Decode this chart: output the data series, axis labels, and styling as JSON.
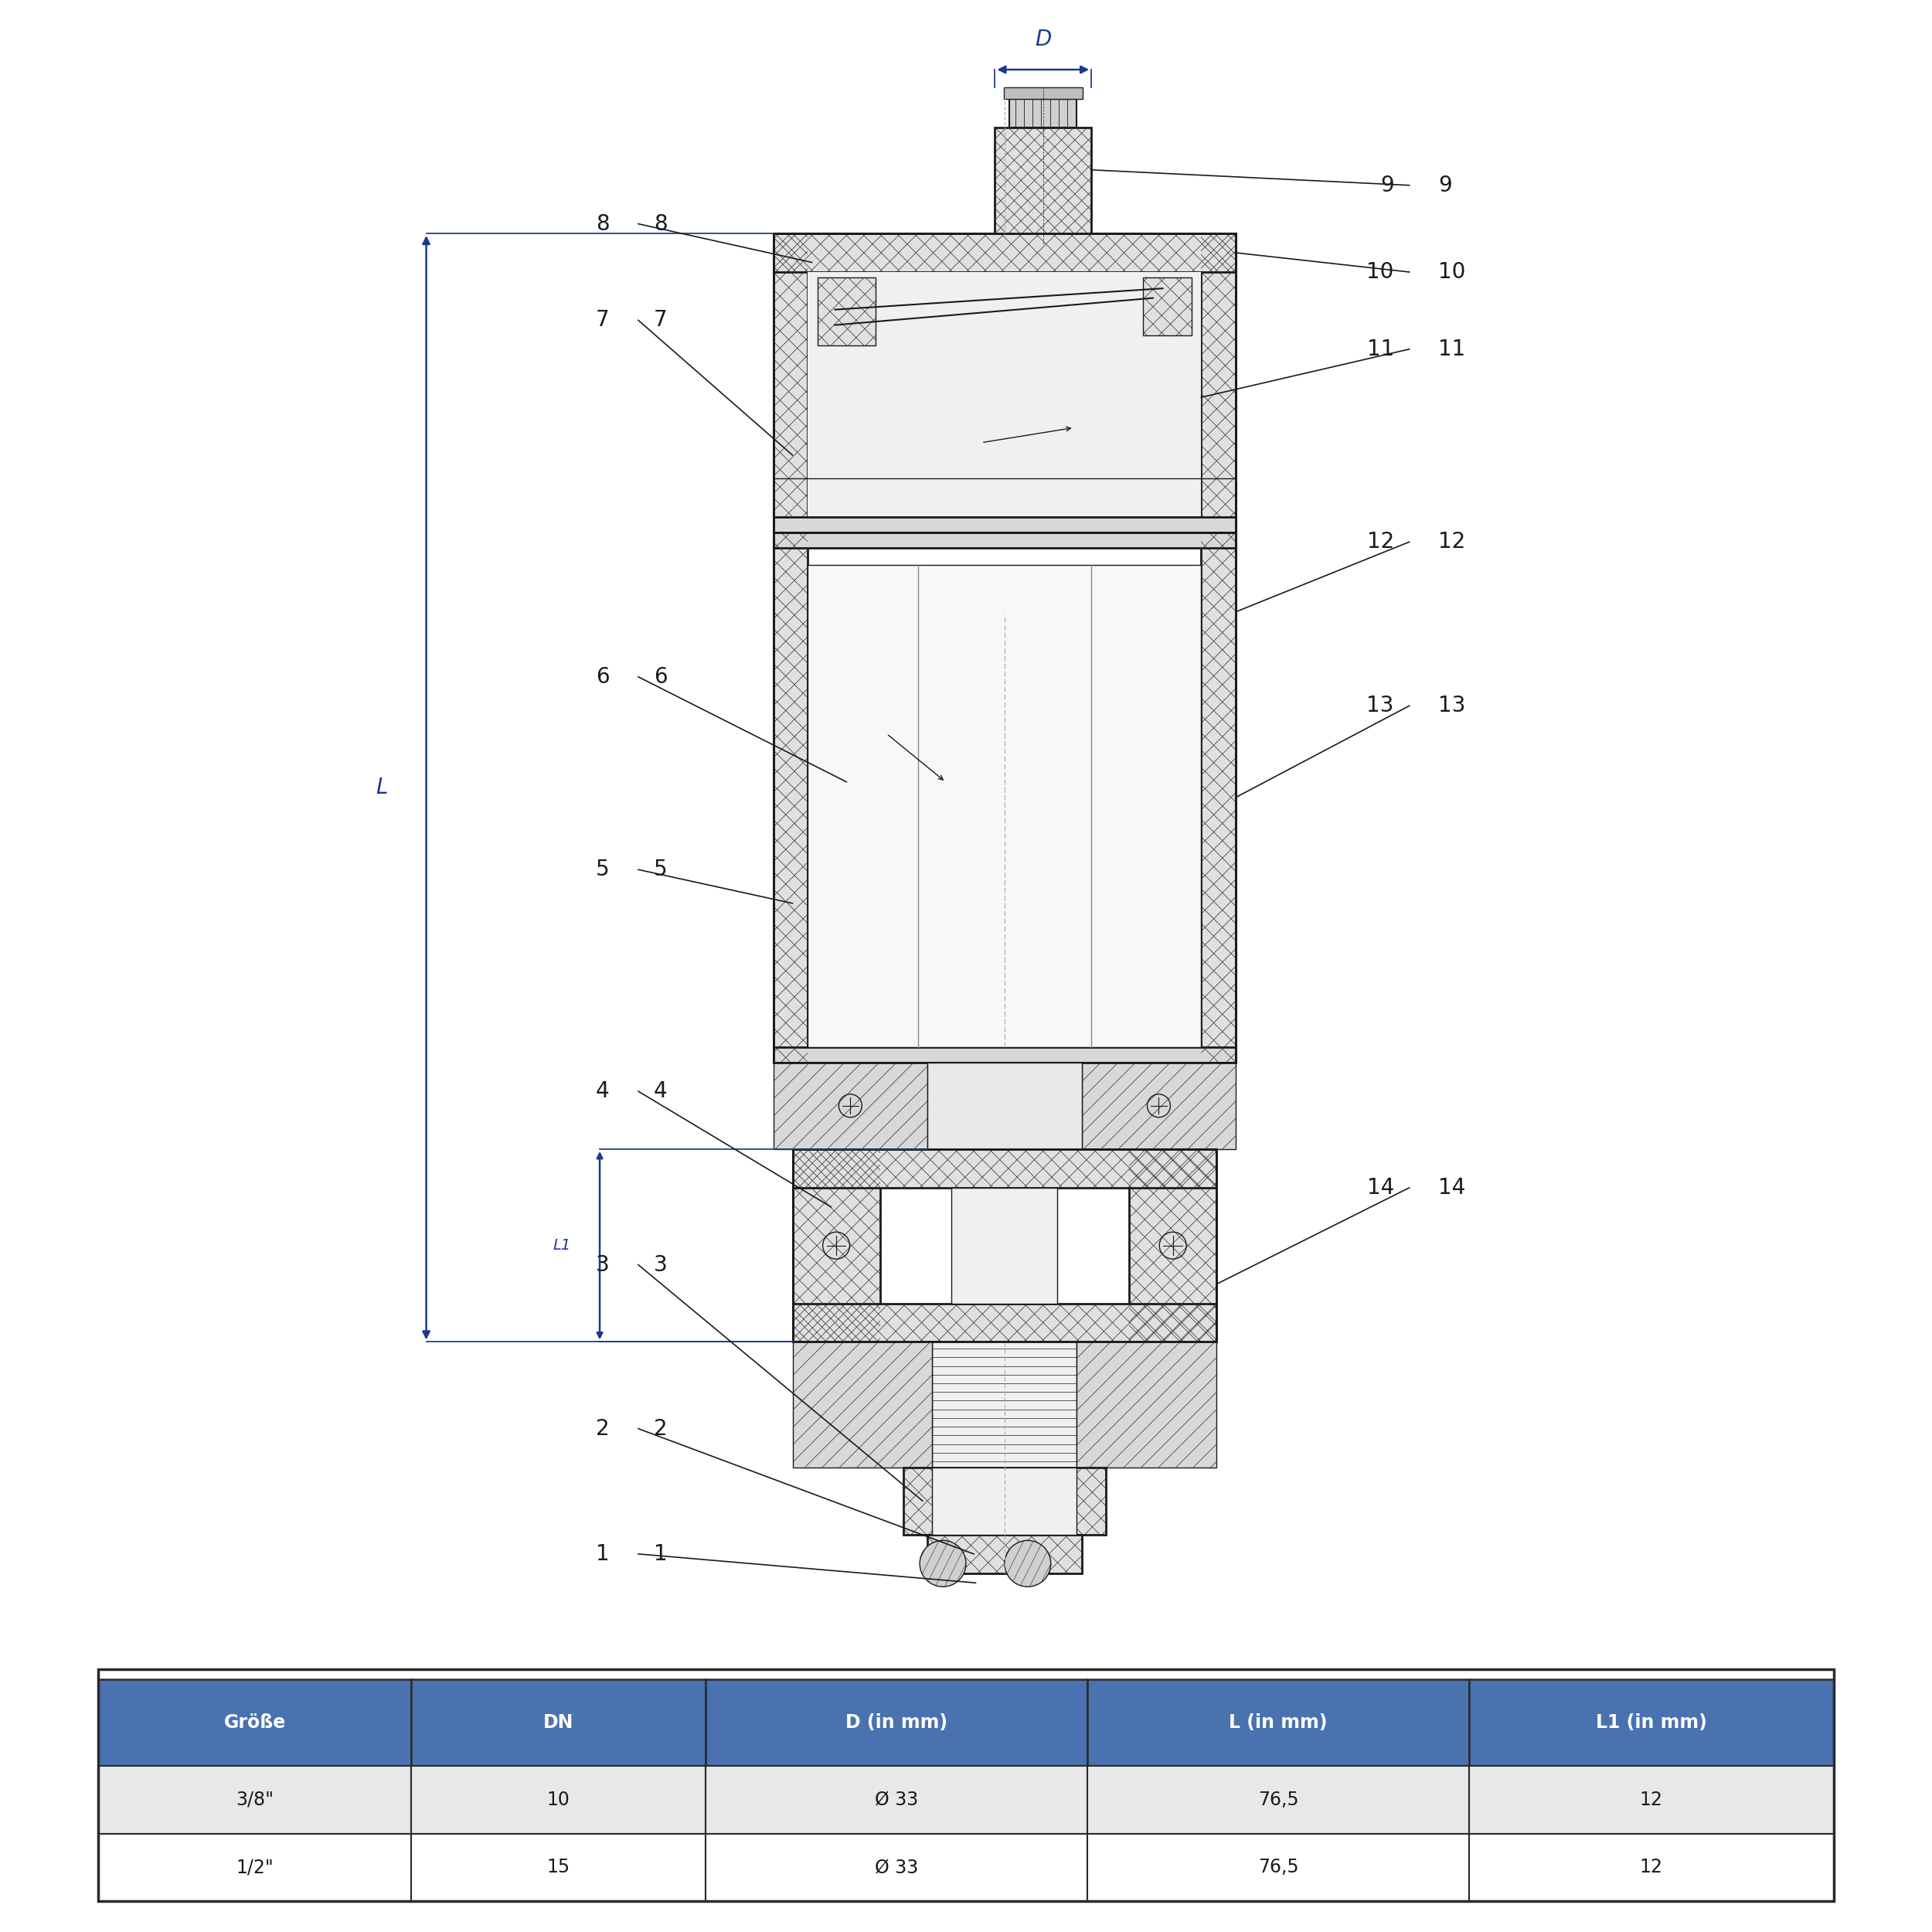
{
  "bg_color": "#ffffff",
  "black": "#1a1a1a",
  "blue_header": "#4a72b0",
  "blue_header_text": "#ffffff",
  "table_row1_bg": "#e8e8e8",
  "table_row2_bg": "#ffffff",
  "table_border": "#2a2a2a",
  "table_headers": [
    "Größe",
    "DN",
    "D (in mm)",
    "L (in mm)",
    "L1 (in mm)"
  ],
  "table_row1": [
    "3/8\"",
    "10",
    "Ø 33",
    "76,5",
    "12"
  ],
  "table_row2": [
    "1/2\"",
    "15",
    "Ø 33",
    "76,5",
    "12"
  ],
  "dim_label_D": "D",
  "dim_label_L": "L",
  "dim_label_L1": "L1",
  "part_nums_left": [
    "8",
    "7",
    "6",
    "5",
    "4",
    "3",
    "2",
    "1"
  ],
  "part_nums_right": [
    "9",
    "10",
    "11",
    "12",
    "13",
    "14"
  ]
}
